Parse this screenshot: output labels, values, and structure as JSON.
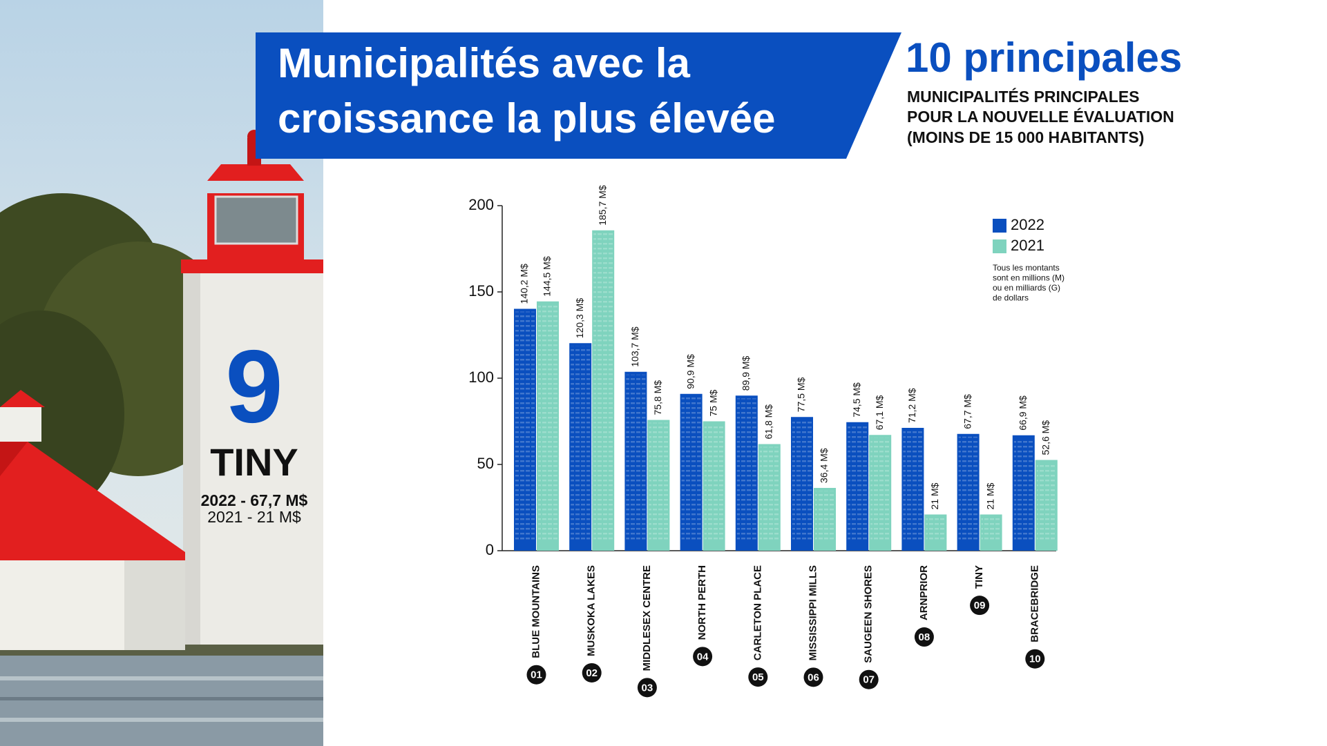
{
  "header": {
    "title_lines": [
      "Municipalités avec la",
      "croissance la plus élevée"
    ],
    "top": "10 principales",
    "subtitle_lines": [
      "MUNICIPALITÉS PRINCIPALES",
      "POUR LA NOUVELLE ÉVALUATION",
      "(MOINS DE 15 000 HABITANTS)"
    ]
  },
  "panel": {
    "rank": "9",
    "name": "TINY",
    "line_2022": "2022 - 67,7 M$",
    "line_2021": "2021 - 21 M$"
  },
  "chart_data": {
    "type": "bar",
    "categories": [
      "BLUE MOUNTAINS",
      "MUSKOKA LAKES",
      "MIDDLESEX CENTRE",
      "NORTH PERTH",
      "CARLETON PLACE",
      "MISSISSIPPI MILLS",
      "SAUGEEN SHORES",
      "ARNPRIOR",
      "TINY",
      "BRACEBRIDGE"
    ],
    "ranks": [
      "01",
      "02",
      "03",
      "04",
      "05",
      "06",
      "07",
      "08",
      "09",
      "10"
    ],
    "series": [
      {
        "name": "2022",
        "color": "#0a4fbf",
        "values": [
          140.2,
          120.3,
          103.7,
          90.9,
          89.9,
          77.5,
          74.5,
          71.2,
          67.7,
          66.9
        ],
        "value_labels": [
          "140,2 M$",
          "120,3 M$",
          "103,7 M$",
          "90,9 M$",
          "89,9 M$",
          "77,5 M$",
          "74,5 M$",
          "71,2 M$",
          "67,7 M$",
          "66,9 M$"
        ]
      },
      {
        "name": "2021",
        "color": "#7fd3be",
        "values": [
          144.5,
          185.7,
          75.8,
          75,
          61.8,
          36.4,
          67.1,
          21,
          21,
          52.6
        ],
        "value_labels": [
          "144,5 M$",
          "185,7 M$",
          "75,8 M$",
          "75 M$",
          "61,8 M$",
          "36,4 M$",
          "67,1 M$",
          "21 M$",
          "21 M$",
          "52,6 M$"
        ]
      }
    ],
    "ylim": [
      0,
      200
    ],
    "yticks": [
      0,
      50,
      100,
      150,
      200
    ],
    "note_lines": [
      "Tous les montants",
      "sont en millions (M)",
      "ou en milliards (G)",
      "de dollars"
    ]
  }
}
